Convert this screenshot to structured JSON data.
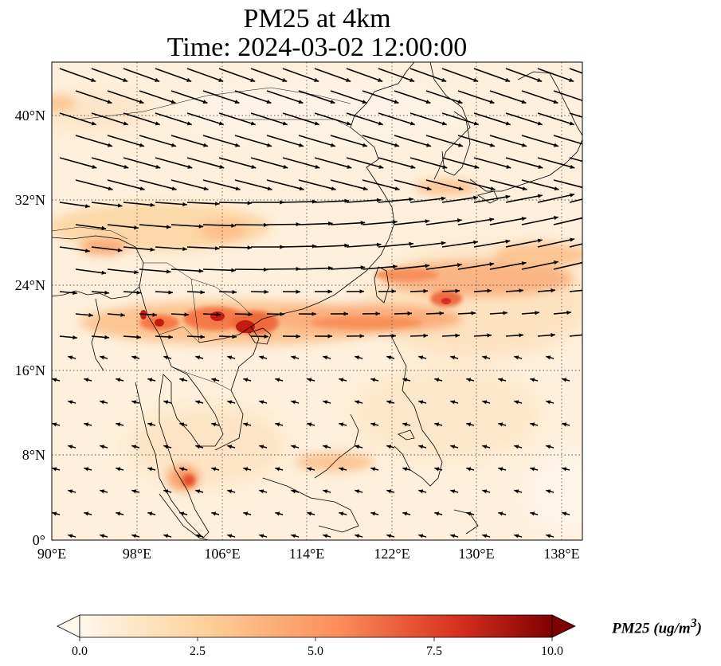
{
  "title": {
    "line1": "PM25 at 4km",
    "line2": "Time: 2024-03-02 12:00:00"
  },
  "map": {
    "projection": "PlateCarree",
    "lon_range": [
      90,
      140
    ],
    "lat_range": [
      0,
      45
    ],
    "lon_ticks": [
      90,
      98,
      106,
      114,
      122,
      130,
      138
    ],
    "lon_tick_labels": [
      "90°E",
      "98°E",
      "106°E",
      "114°E",
      "122°E",
      "130°E",
      "138°E"
    ],
    "lat_ticks": [
      0,
      8,
      16,
      24,
      32,
      40
    ],
    "lat_tick_labels": [
      "0°",
      "8°N",
      "16°N",
      "24°N",
      "32°N",
      "40°N"
    ],
    "gridlines": "dotted",
    "field": "PM25 concentration (filled, OrRd colormap)",
    "vectors": "wind arrows",
    "high_concentration_band_lat": [
      18,
      24
    ]
  },
  "colorbar": {
    "min": 0.0,
    "max": 10.0,
    "ticks": [
      "0.0",
      "2.5",
      "5.0",
      "7.5",
      "10.0"
    ],
    "label_text": "PM25 (ug/m",
    "label_sup": "3",
    "label_close": ")",
    "colors": [
      "#fff7ec",
      "#fdd49e",
      "#fc8d59",
      "#d7301f",
      "#7f0000"
    ],
    "extend": "both"
  }
}
